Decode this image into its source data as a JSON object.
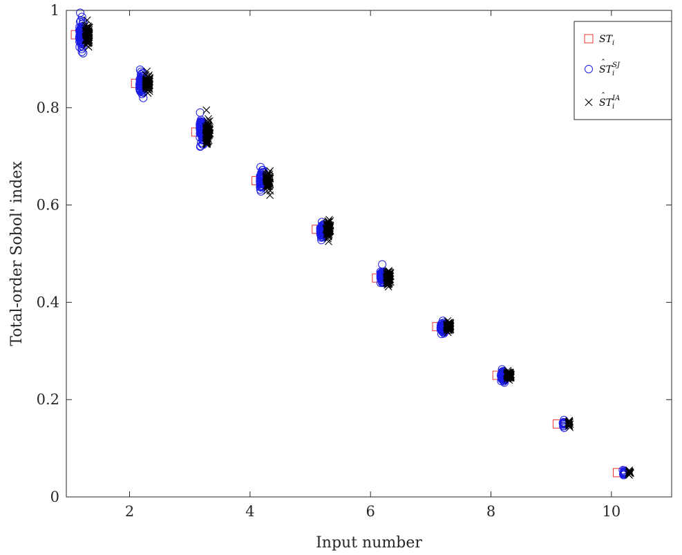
{
  "chart_data": {
    "type": "scatter",
    "title": "",
    "xlabel": "Input number",
    "ylabel": "Total-order Sobol' index",
    "xlim": [
      0.95,
      11.0
    ],
    "ylim": [
      0,
      1
    ],
    "xticks": [
      "2",
      "4",
      "6",
      "8",
      "10"
    ],
    "yticks": [
      "0",
      "0.2",
      "0.4",
      "0.6",
      "0.8",
      "1"
    ],
    "grid": false,
    "legend_position": "top-right",
    "categories": [
      1,
      2,
      3,
      4,
      5,
      6,
      7,
      8,
      9,
      10
    ],
    "series": [
      {
        "name": "ST_i",
        "marker": "square",
        "color": "#e8302f",
        "x": [
          1.1,
          2.1,
          3.1,
          4.1,
          5.1,
          6.1,
          7.1,
          8.1,
          9.1,
          10.1
        ],
        "y": [
          0.95,
          0.85,
          0.75,
          0.65,
          0.55,
          0.45,
          0.35,
          0.25,
          0.15,
          0.05
        ]
      },
      {
        "name": "ST_i^SJ",
        "marker": "circle",
        "color": "#1a1ae6",
        "x": [
          1.2,
          2.2,
          3.2,
          4.2,
          5.2,
          6.2,
          7.2,
          8.2,
          9.2,
          10.2
        ],
        "y_min": [
          0.912,
          0.82,
          0.72,
          0.628,
          0.528,
          0.44,
          0.335,
          0.235,
          0.142,
          0.045
        ],
        "y_max": [
          0.995,
          0.878,
          0.79,
          0.678,
          0.565,
          0.478,
          0.362,
          0.262,
          0.158,
          0.055
        ],
        "y_center": [
          0.95,
          0.85,
          0.752,
          0.652,
          0.548,
          0.452,
          0.348,
          0.248,
          0.15,
          0.05
        ]
      },
      {
        "name": "ST_i^IA",
        "marker": "x",
        "color": "#000000",
        "x": [
          1.3,
          2.3,
          3.3,
          4.3,
          5.3,
          6.3,
          7.3,
          8.3,
          9.3,
          10.3
        ],
        "y_min": [
          0.925,
          0.83,
          0.725,
          0.62,
          0.525,
          0.432,
          0.338,
          0.24,
          0.143,
          0.045
        ],
        "y_max": [
          0.98,
          0.875,
          0.795,
          0.67,
          0.57,
          0.465,
          0.362,
          0.26,
          0.157,
          0.055
        ],
        "y_center": [
          0.95,
          0.85,
          0.75,
          0.65,
          0.55,
          0.45,
          0.35,
          0.25,
          0.15,
          0.05
        ]
      }
    ]
  },
  "legend": {
    "items": [
      {
        "base": "ST",
        "sub": "i",
        "sup": "",
        "hat": false,
        "marker": "square",
        "color": "#e8302f"
      },
      {
        "base": "ST",
        "sub": "i",
        "sup": "SJ",
        "hat": true,
        "marker": "circle",
        "color": "#1a1ae6"
      },
      {
        "base": "ST",
        "sub": "i",
        "sup": "IA",
        "hat": true,
        "marker": "x",
        "color": "#000000"
      }
    ]
  }
}
